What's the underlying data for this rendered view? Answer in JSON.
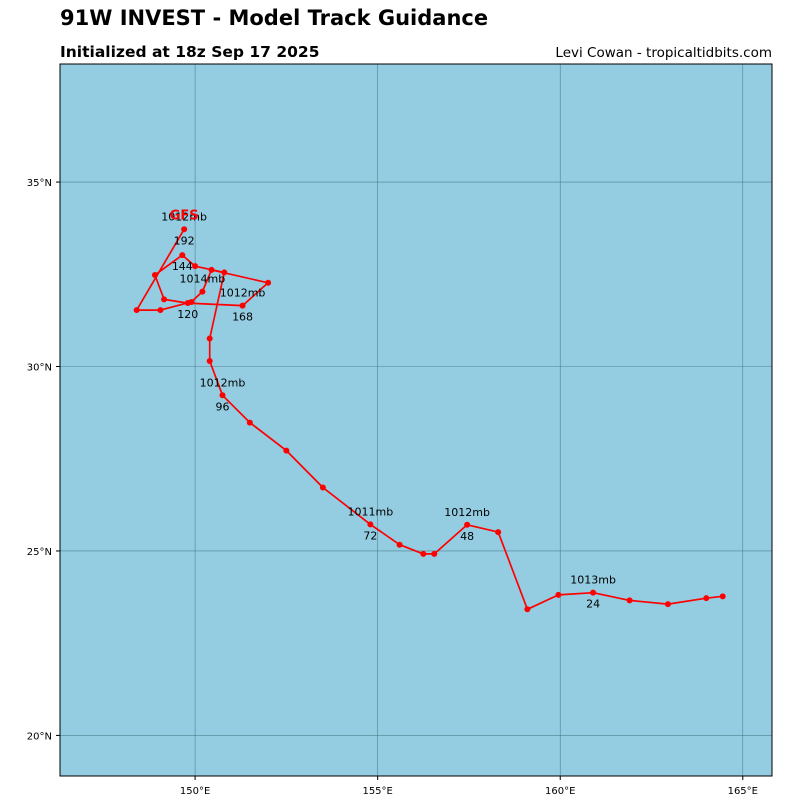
{
  "header": {
    "title": "91W INVEST - Model Track Guidance",
    "subtitle": "Initialized at 18z Sep 17 2025",
    "credit": "Levi Cowan - tropicaltidbits.com"
  },
  "colors": {
    "ocean": "#94cde2",
    "track": "#ff0000",
    "grid": "#3d6e7a",
    "frame": "#000000"
  },
  "map": {
    "lon_range": [
      146.3,
      165.8
    ],
    "lat_range": [
      18.9,
      38.2
    ],
    "lon_ticks": [
      {
        "v": 150,
        "label": "150°E"
      },
      {
        "v": 155,
        "label": "155°E"
      },
      {
        "v": 160,
        "label": "160°E"
      },
      {
        "v": 165,
        "label": "165°E"
      }
    ],
    "lat_ticks": [
      {
        "v": 35,
        "label": "35°N"
      },
      {
        "v": 30,
        "label": "30°N"
      },
      {
        "v": 25,
        "label": "25°N"
      },
      {
        "v": 20,
        "label": "20°N"
      }
    ]
  },
  "tracks": [
    {
      "model": "GFS",
      "points": [
        [
          164.45,
          23.77
        ],
        [
          164.0,
          23.72
        ],
        [
          162.95,
          23.56
        ],
        [
          161.9,
          23.66
        ],
        [
          160.9,
          23.87
        ],
        [
          159.95,
          23.81
        ],
        [
          159.1,
          23.42
        ],
        [
          158.3,
          25.51
        ],
        [
          157.45,
          25.71
        ],
        [
          156.55,
          24.92
        ],
        [
          156.25,
          24.92
        ],
        [
          155.6,
          25.17
        ],
        [
          154.8,
          25.72
        ],
        [
          153.5,
          26.72
        ],
        [
          152.5,
          27.72
        ],
        [
          151.5,
          28.48
        ],
        [
          150.75,
          29.22
        ],
        [
          150.4,
          30.15
        ],
        [
          150.4,
          30.76
        ],
        [
          150.8,
          32.55
        ],
        [
          150.0,
          32.72
        ],
        [
          149.65,
          33.02
        ],
        [
          148.9,
          32.48
        ],
        [
          149.15,
          31.82
        ],
        [
          149.8,
          31.72
        ],
        [
          151.3,
          31.65
        ],
        [
          152.0,
          32.27
        ],
        [
          150.45,
          32.62
        ],
        [
          150.2,
          32.03
        ],
        [
          149.9,
          31.75
        ],
        [
          149.05,
          31.53
        ],
        [
          148.4,
          31.53
        ],
        [
          149.7,
          33.72
        ]
      ],
      "annotations": [
        {
          "lon": 160.9,
          "lat": 23.87,
          "pressure": "1013mb",
          "hour": "24"
        },
        {
          "lon": 157.45,
          "lat": 25.71,
          "pressure": "1012mb",
          "hour": "48"
        },
        {
          "lon": 154.8,
          "lat": 25.72,
          "pressure": "1011mb",
          "hour": "72"
        },
        {
          "lon": 150.75,
          "lat": 29.22,
          "pressure": "1012mb",
          "hour": "96"
        },
        {
          "lon": 149.8,
          "lat": 31.72,
          "pressure": "",
          "hour": "120"
        },
        {
          "lon": 150.2,
          "lat": 32.03,
          "pressure": "1014mb",
          "hour": ""
        },
        {
          "lon": 149.65,
          "lat": 33.02,
          "pressure": "",
          "hour": "144"
        },
        {
          "lon": 151.3,
          "lat": 31.65,
          "pressure": "1012mb",
          "hour": "168"
        },
        {
          "lon": 149.7,
          "lat": 33.72,
          "pressure": "1012mb",
          "hour": "192"
        }
      ]
    }
  ]
}
